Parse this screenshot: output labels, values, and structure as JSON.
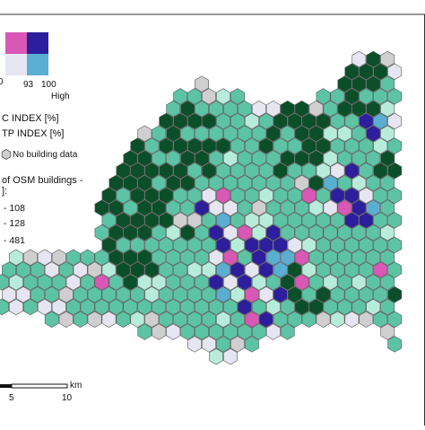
{
  "legend": {
    "bivariate": {
      "colors": {
        "top_left": "#d957b5",
        "top_right": "#2c1e9c",
        "bottom_left": "#e6e6f2",
        "bottom_right": "#5aaed2"
      },
      "tick_left": "0",
      "tick_mid": "93",
      "tick_right": "100",
      "high_label": "High"
    },
    "index_x_label": "C INDEX [%]",
    "index_y_label": "TP INDEX [%]",
    "no_data_label": "No building data",
    "no_data_color": "#cfcfcf",
    "count_title_line1": "of OSM buildings -",
    "count_title_line2": "]:",
    "count_classes": [
      "- 108",
      "- 128",
      "- 481"
    ]
  },
  "scale_bar": {
    "unit": "km",
    "ticks": [
      "5",
      "10"
    ]
  },
  "palette": {
    "dark_green": "#0b4f2a",
    "teal": "#5cc4a4",
    "light_teal": "#b8ecda",
    "lavender": "#e6e6f2",
    "pink": "#d957b5",
    "navy": "#2c1e9c",
    "sky": "#5aaed2",
    "grey": "#cfcfcf",
    "outline": "#555555"
  }
}
